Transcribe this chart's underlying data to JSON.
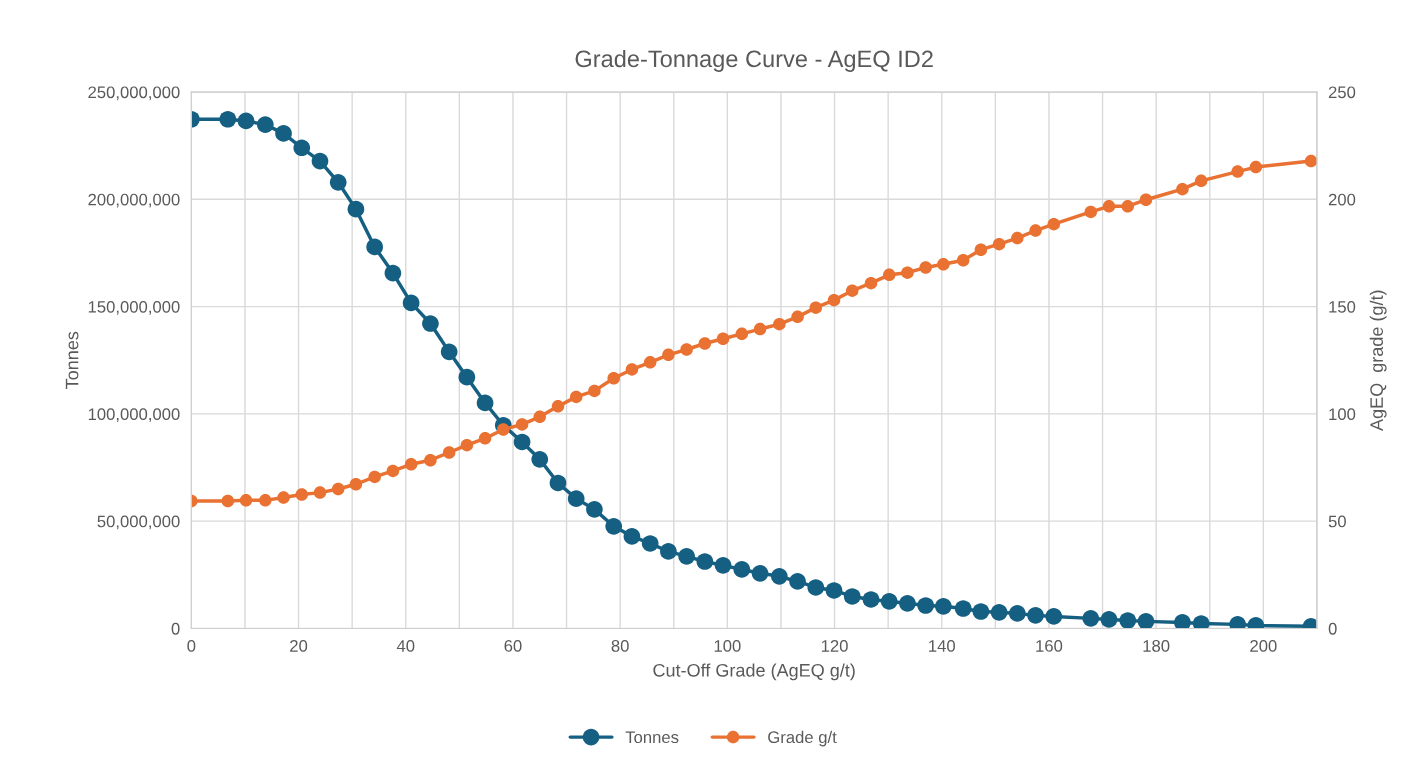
{
  "chart_data": {
    "type": "line",
    "title": "Grade-Tonnage Curve - AgEQ ID2",
    "xlabel": "Cut-Off Grade (AgEQ g/t)",
    "ylabel": "Tonnes",
    "y2label": "AgEQ  grade (g/t)",
    "x": [
      0,
      6.8,
      10.2,
      13.8,
      17.2,
      20.6,
      24.0,
      27.4,
      30.7,
      34.2,
      37.6,
      41.0,
      44.6,
      48.1,
      51.4,
      54.8,
      58.2,
      61.7,
      65.0,
      68.4,
      71.8,
      75.2,
      78.8,
      82.2,
      85.6,
      89.0,
      92.4,
      95.8,
      99.2,
      102.7,
      106.1,
      109.7,
      113.1,
      116.5,
      119.9,
      123.3,
      126.8,
      130.2,
      133.6,
      137.0,
      140.3,
      144.0,
      147.3,
      150.7,
      154.1,
      157.5,
      160.9,
      167.8,
      171.2,
      174.7,
      178.1,
      184.9,
      188.4,
      195.2,
      198.6,
      208.9
    ],
    "series": [
      {
        "name": "Tonnes",
        "color": "#156082",
        "values": [
          237300000,
          237300000,
          236500000,
          234800000,
          230700000,
          224000000,
          217800000,
          207900000,
          195400000,
          177800000,
          165600000,
          151700000,
          142100000,
          128900000,
          117100000,
          105100000,
          94700000,
          86900000,
          78800000,
          67800000,
          60500000,
          55500000,
          47600000,
          42900000,
          39600000,
          35900000,
          33600000,
          31200000,
          29400000,
          27500000,
          25700000,
          24300000,
          21900000,
          19100000,
          17700000,
          14900000,
          13500000,
          12600000,
          11700000,
          10700000,
          10300000,
          9300000,
          7900000,
          7500000,
          7000000,
          6100000,
          5600000,
          4700000,
          4200000,
          3700000,
          3300000,
          2800000,
          2300000,
          1900000,
          1400000,
          1000000
        ]
      },
      {
        "name": "Grade g/t",
        "color": "#e97132",
        "axis": "y2",
        "values": [
          59.4,
          59.4,
          59.7,
          59.7,
          61.0,
          62.4,
          63.3,
          65.0,
          67.2,
          70.6,
          73.4,
          76.5,
          78.4,
          82.0,
          85.4,
          88.6,
          92.7,
          95.1,
          98.6,
          103.5,
          107.9,
          110.7,
          116.6,
          120.7,
          124.0,
          127.5,
          130.0,
          132.8,
          135.0,
          137.3,
          139.5,
          141.8,
          145.2,
          149.5,
          153.0,
          157.4,
          160.9,
          164.8,
          165.8,
          168.2,
          169.7,
          171.6,
          176.5,
          179.1,
          181.9,
          185.4,
          188.4,
          194.1,
          196.7,
          196.7,
          199.8,
          204.7,
          208.6,
          212.9,
          215.0,
          217.8
        ]
      }
    ],
    "xlim": [
      0,
      210
    ],
    "xticks": [
      0,
      {
        "value": 10,
        "label": null
      },
      20,
      {
        "value": 30,
        "label": null
      },
      40,
      {
        "value": 50,
        "label": null
      },
      60,
      {
        "value": 70,
        "label": null
      },
      80,
      {
        "value": 90,
        "label": null
      },
      100,
      {
        "value": 110,
        "label": null
      },
      120,
      {
        "value": 130,
        "label": null
      },
      140,
      {
        "value": 150,
        "label": null
      },
      160,
      {
        "value": 170,
        "label": null
      },
      180,
      {
        "value": 190,
        "label": null
      },
      200,
      {
        "value": 210,
        "label": null
      }
    ],
    "ylim": [
      0,
      250000000
    ],
    "yticks": [
      {
        "value": 0,
        "label": "0"
      },
      {
        "value": 50000000,
        "label": "50,000,000"
      },
      {
        "value": 100000000,
        "label": "100,000,000"
      },
      {
        "value": 150000000,
        "label": "150,000,000"
      },
      {
        "value": 200000000,
        "label": "200,000,000"
      },
      {
        "value": 250000000,
        "label": "250,000,000"
      }
    ],
    "y2lim": [
      0,
      250
    ],
    "y2ticks": [
      0,
      50,
      100,
      150,
      200,
      250
    ],
    "grid": true,
    "legend": "bottom",
    "marker": "circle",
    "line_style": "solid"
  }
}
